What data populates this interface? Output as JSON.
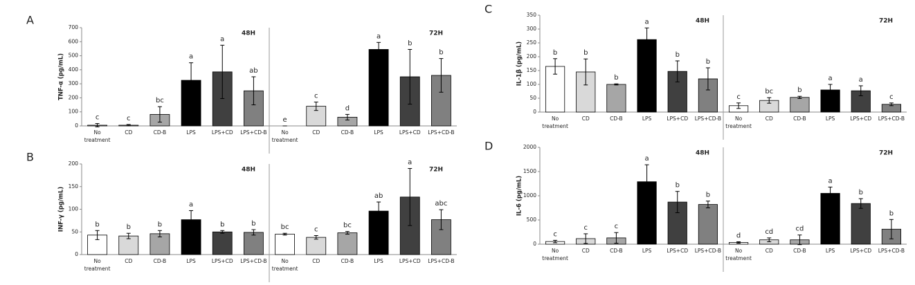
{
  "chart_data": [
    {
      "type": "bar",
      "panel": "A",
      "ylabel": "TNF-α (pg/mL)",
      "groups": [
        "48H",
        "72H"
      ],
      "categories": [
        "No treatment",
        "CD",
        "CD-B",
        "LPS",
        "LPS+CD",
        "LPS+CD-B",
        "No treatment",
        "CD",
        "CD-B",
        "LPS",
        "LPS+CD",
        "LPS+CD-B"
      ],
      "values": [
        5,
        5,
        82,
        325,
        385,
        250,
        0,
        140,
        62,
        545,
        350,
        360
      ],
      "errors": [
        12,
        5,
        55,
        125,
        190,
        100,
        0,
        30,
        20,
        50,
        195,
        120
      ],
      "annotations": [
        "c",
        "c",
        "bc",
        "a",
        "a",
        "ab",
        "e",
        "c",
        "d",
        "a",
        "b",
        "b"
      ],
      "colors": [
        "#ffffff",
        "#d9d9d9",
        "#a6a6a6",
        "#000000",
        "#404040",
        "#808080",
        "#ffffff",
        "#d9d9d9",
        "#a6a6a6",
        "#000000",
        "#404040",
        "#808080"
      ],
      "ylim": [
        0,
        700
      ],
      "yticks": [
        0,
        100,
        200,
        300,
        400,
        500,
        600,
        700
      ]
    },
    {
      "type": "bar",
      "panel": "B",
      "ylabel": "INF-γ (pg/mL)",
      "groups": [
        "48H",
        "72H"
      ],
      "categories": [
        "No treatment",
        "CD",
        "CD-B",
        "LPS",
        "LPS+CD",
        "LPS+CD-B",
        "No treatment",
        "CD",
        "CD-B",
        "LPS",
        "LPS+CD",
        "LPS+CD-B"
      ],
      "values": [
        43,
        41,
        46,
        77,
        50,
        49,
        45,
        38,
        48,
        96,
        127,
        77
      ],
      "errors": [
        10,
        6,
        7,
        20,
        3,
        6,
        2,
        4,
        3,
        20,
        63,
        22
      ],
      "annotations": [
        "b",
        "b",
        "b",
        "a",
        "b",
        "b",
        "bc",
        "c",
        "bc",
        "ab",
        "a",
        "abc"
      ],
      "colors": [
        "#ffffff",
        "#d9d9d9",
        "#a6a6a6",
        "#000000",
        "#404040",
        "#808080",
        "#ffffff",
        "#d9d9d9",
        "#a6a6a6",
        "#000000",
        "#404040",
        "#808080"
      ],
      "ylim": [
        0,
        200
      ],
      "yticks": [
        0,
        50,
        100,
        150,
        200
      ]
    },
    {
      "type": "bar",
      "panel": "C",
      "ylabel": "IL-1β (pg/mL)",
      "groups": [
        "48H",
        "72H"
      ],
      "categories": [
        "No treatment",
        "CD",
        "CD-B",
        "LPS",
        "LPS+CD",
        "LPS+CD-B",
        "No treatment",
        "CD",
        "CD-B",
        "LPS",
        "LPS+CD",
        "LPS+CD-B"
      ],
      "values": [
        165,
        145,
        100,
        262,
        147,
        120,
        23,
        42,
        53,
        80,
        77,
        28
      ],
      "errors": [
        28,
        47,
        2,
        42,
        38,
        40,
        10,
        10,
        4,
        20,
        18,
        5
      ],
      "annotations": [
        "b",
        "b",
        "b",
        "a",
        "b",
        "b",
        "c",
        "bc",
        "b",
        "a",
        "a",
        "c"
      ],
      "colors": [
        "#ffffff",
        "#d9d9d9",
        "#a6a6a6",
        "#000000",
        "#404040",
        "#808080",
        "#ffffff",
        "#d9d9d9",
        "#a6a6a6",
        "#000000",
        "#404040",
        "#808080"
      ],
      "ylim": [
        0,
        350
      ],
      "yticks": [
        0,
        50,
        100,
        150,
        200,
        250,
        300,
        350
      ]
    },
    {
      "type": "bar",
      "panel": "D",
      "ylabel": "IL-6 (pg/mL)",
      "groups": [
        "48H",
        "72H"
      ],
      "categories": [
        "No treatment",
        "CD",
        "CD-B",
        "LPS",
        "LPS+CD",
        "LPS+CD-B",
        "No treatment",
        "CD",
        "CD-B",
        "LPS",
        "LPS+CD",
        "LPS+CD-B"
      ],
      "values": [
        55,
        115,
        130,
        1290,
        870,
        820,
        35,
        90,
        90,
        1050,
        840,
        310
      ],
      "errors": [
        25,
        100,
        110,
        350,
        220,
        70,
        15,
        40,
        100,
        130,
        100,
        200
      ],
      "annotations": [
        "c",
        "c",
        "c",
        "a",
        "b",
        "b",
        "d",
        "cd",
        "cd",
        "a",
        "b",
        "b"
      ],
      "colors": [
        "#ffffff",
        "#d9d9d9",
        "#a6a6a6",
        "#000000",
        "#404040",
        "#808080",
        "#ffffff",
        "#d9d9d9",
        "#a6a6a6",
        "#000000",
        "#404040",
        "#808080"
      ],
      "ylim": [
        0,
        2000
      ],
      "yticks": [
        0,
        500,
        1000,
        1500,
        2000
      ]
    }
  ]
}
